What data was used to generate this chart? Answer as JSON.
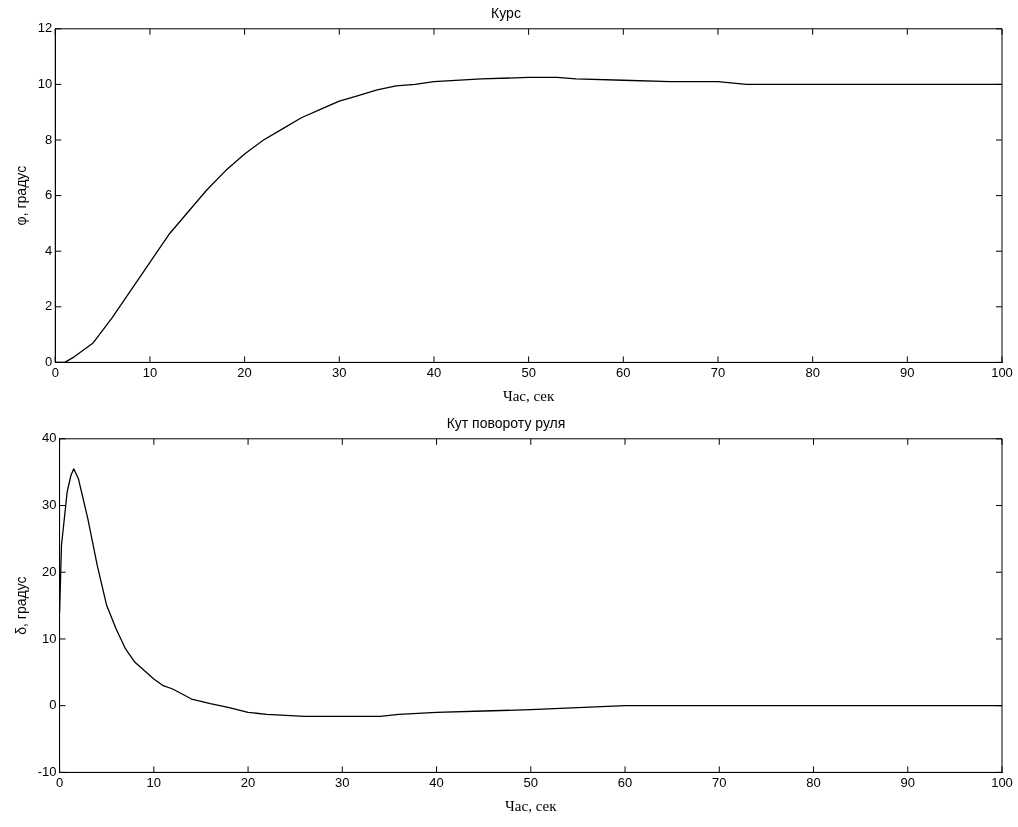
{
  "chart_data": [
    {
      "type": "line",
      "title": "Курс",
      "xlabel": "Час, сек",
      "ylabel": "φ, градус",
      "xlim": [
        0,
        100
      ],
      "xticks": [
        0,
        10,
        20,
        30,
        40,
        50,
        60,
        70,
        80,
        90,
        100
      ],
      "ylim": [
        0,
        12
      ],
      "yticks": [
        0,
        2,
        4,
        6,
        8,
        10,
        12
      ],
      "grid": false,
      "legend": false,
      "marker": "none",
      "line_style": "solid",
      "series": [
        {
          "color": "#000000",
          "x": [
            0,
            1,
            2,
            4,
            6,
            8,
            10,
            12,
            14,
            16,
            18,
            20,
            22,
            24,
            26,
            28,
            30,
            32,
            34,
            36,
            38,
            40,
            45,
            50,
            53,
            55,
            60,
            65,
            70,
            73,
            80,
            90,
            100
          ],
          "values": [
            0,
            0,
            0.2,
            0.7,
            1.6,
            2.6,
            3.6,
            4.6,
            5.4,
            6.2,
            6.9,
            7.5,
            8.0,
            8.4,
            8.8,
            9.1,
            9.4,
            9.6,
            9.8,
            9.95,
            10.0,
            10.1,
            10.2,
            10.25,
            10.25,
            10.2,
            10.15,
            10.1,
            10.1,
            10.0,
            10.0,
            10.0,
            10.0
          ]
        }
      ]
    },
    {
      "type": "line",
      "title": "Кут повороту руля",
      "xlabel": "Час, сек",
      "ylabel": "δ, градус",
      "xlim": [
        0,
        100
      ],
      "xticks": [
        0,
        10,
        20,
        30,
        40,
        50,
        60,
        70,
        80,
        90,
        100
      ],
      "ylim": [
        -10,
        40
      ],
      "yticks": [
        -10,
        0,
        10,
        20,
        30,
        40
      ],
      "grid": false,
      "legend": false,
      "marker": "none",
      "line_style": "solid",
      "series": [
        {
          "color": "#000000",
          "x": [
            0,
            0.2,
            0.5,
            0.8,
            1.2,
            1.5,
            2,
            3,
            4,
            5,
            6,
            7,
            8,
            10,
            11,
            12,
            14,
            16,
            18,
            20,
            22,
            26,
            30,
            34,
            36,
            40,
            45,
            50,
            55,
            60,
            70,
            100
          ],
          "values": [
            14,
            24,
            28,
            32,
            34.5,
            35.5,
            34,
            28,
            21,
            15,
            11.5,
            8.5,
            6.5,
            4,
            3,
            2.5,
            1,
            0.3,
            -0.3,
            -1,
            -1.3,
            -1.6,
            -1.6,
            -1.6,
            -1.3,
            -1,
            -0.8,
            -0.6,
            -0.3,
            0,
            0,
            0
          ]
        }
      ]
    }
  ]
}
